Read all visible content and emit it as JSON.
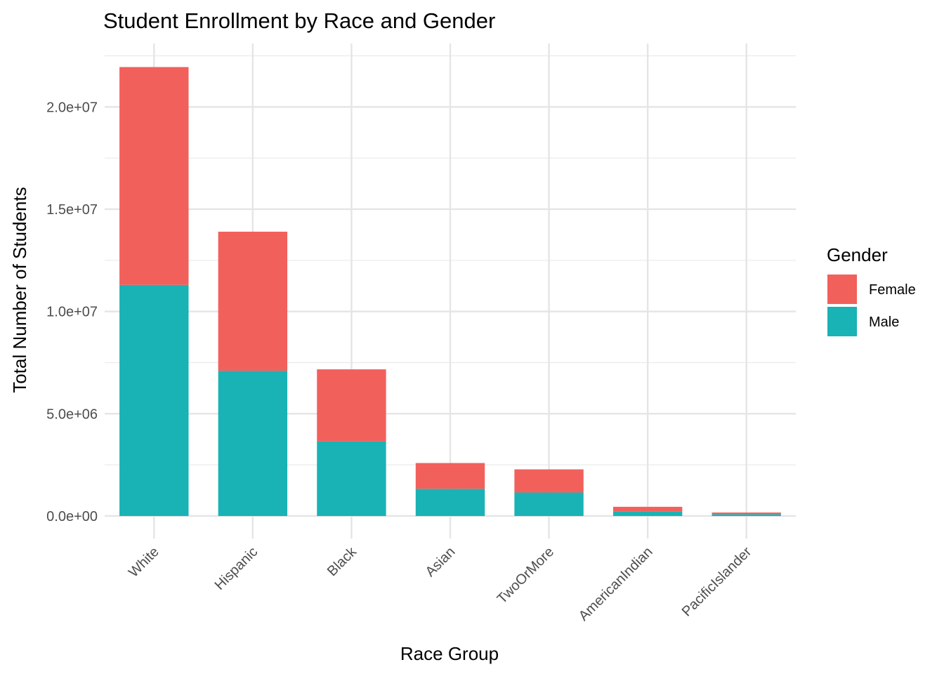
{
  "chart_data": {
    "type": "bar",
    "stacked": true,
    "title": "Student Enrollment by Race and Gender",
    "xlabel": "Race Group",
    "ylabel": "Total Number of Students",
    "categories": [
      "White",
      "Hispanic",
      "Black",
      "Asian",
      "TwoOrMore",
      "AmericanIndian",
      "PacificIslander"
    ],
    "series": [
      {
        "name": "Male",
        "color": "#19B2B5",
        "values": [
          11300000,
          7100000,
          3650000,
          1330000,
          1150000,
          230000,
          90000
        ]
      },
      {
        "name": "Female",
        "color": "#F2605C",
        "values": [
          10650000,
          6800000,
          3520000,
          1260000,
          1130000,
          220000,
          80000
        ]
      }
    ],
    "yticks": [
      0,
      5000000,
      10000000,
      15000000,
      20000000
    ],
    "ytick_labels": [
      "0.0e+00",
      "5.0e+06",
      "1.0e+07",
      "1.5e+07",
      "2.0e+07"
    ],
    "ylim": [
      -1100000,
      23100000
    ],
    "grid": true,
    "legend": {
      "title": "Gender",
      "position": "right",
      "entries": [
        {
          "label": "Female",
          "color": "#F2605C"
        },
        {
          "label": "Male",
          "color": "#19B2B5"
        }
      ]
    }
  }
}
